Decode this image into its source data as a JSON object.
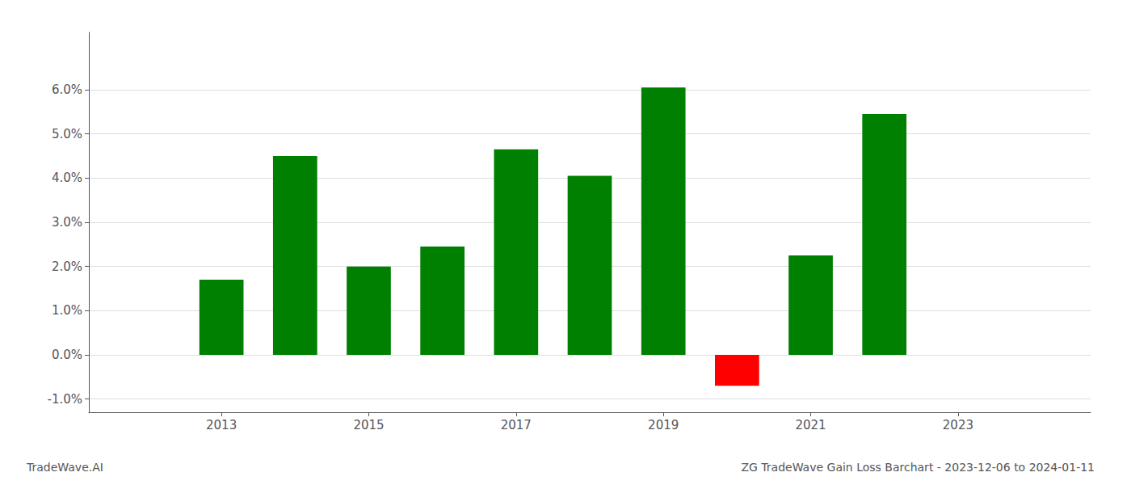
{
  "chart_data": {
    "type": "bar",
    "title": "ZG TradeWave Gain Loss Barchart - 2023-12-06 to 2024-01-11",
    "annotations": [
      {
        "text": "TradeWave.AI"
      }
    ],
    "x": [
      2013,
      2014,
      2015,
      2016,
      2017,
      2018,
      2019,
      2020,
      2021,
      2022
    ],
    "values": [
      0.017,
      0.045,
      0.02,
      0.0245,
      0.0465,
      0.0405,
      0.0605,
      -0.007,
      0.0225,
      0.0545
    ],
    "colors": [
      "#008000",
      "#008000",
      "#008000",
      "#008000",
      "#008000",
      "#008000",
      "#008000",
      "#ff0000",
      "#008000",
      "#008000"
    ],
    "xlim": [
      2011.2,
      2024.8
    ],
    "xticks": [
      2013,
      2015,
      2017,
      2019,
      2021,
      2023
    ],
    "ylim": [
      -0.013,
      0.073
    ],
    "yticks": [
      {
        "value": -0.01,
        "label": "-1.0%"
      },
      {
        "value": 0.0,
        "label": "0.0%"
      },
      {
        "value": 0.01,
        "label": "1.0%"
      },
      {
        "value": 0.02,
        "label": "2.0%"
      },
      {
        "value": 0.03,
        "label": "3.0%"
      },
      {
        "value": 0.04,
        "label": "4.0%"
      },
      {
        "value": 0.05,
        "label": "5.0%"
      },
      {
        "value": 0.06,
        "label": "6.0%"
      }
    ],
    "grid": true
  }
}
